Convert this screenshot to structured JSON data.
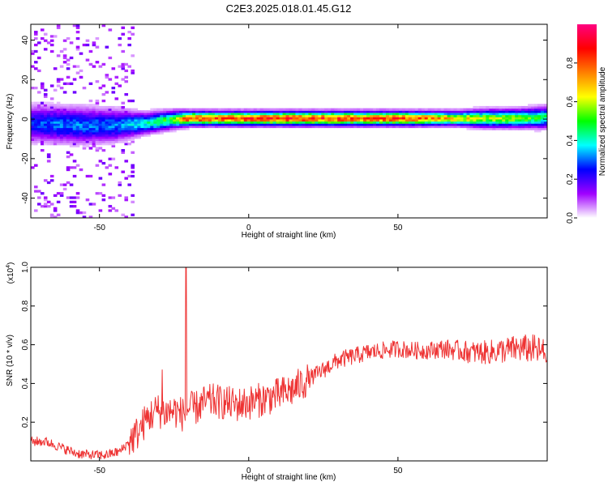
{
  "title": "C2E3.2025.018.01.45.G12",
  "chart_data": [
    {
      "type": "heatmap",
      "xlabel": "Height of straight line (km)",
      "ylabel": "Frequency (Hz)",
      "xlim": [
        -73,
        100
      ],
      "ylim": [
        -50,
        48
      ],
      "xticks": [
        -50,
        0,
        50
      ],
      "xtick_labels": [
        "-50",
        "0",
        "50"
      ],
      "yticks": [
        -40,
        -20,
        0,
        20,
        40
      ],
      "ytick_labels": [
        "-40",
        "-20",
        "0",
        "20",
        "40"
      ],
      "colorbar": {
        "label": "Normalized spectral amplitude",
        "range": [
          0,
          1
        ],
        "ticks": [
          0,
          0.2,
          0.4,
          0.6,
          0.8
        ],
        "tick_labels": [
          "0.0",
          "0.2",
          "0.4",
          "0.6",
          "0.8"
        ],
        "colormap": [
          "#ffffff",
          "#a000ff",
          "#0000ff",
          "#00ffff",
          "#00ff00",
          "#ffff00",
          "#ff8000",
          "#ff0000",
          "#ff0080"
        ]
      },
      "ridge": {
        "x": [
          -73,
          -65,
          -55,
          -45,
          -35,
          -25,
          -20,
          -10,
          0,
          10,
          20,
          30,
          40,
          50,
          60,
          70,
          80,
          90,
          100
        ],
        "frequency": [
          -2,
          -2.5,
          -3,
          -3,
          -2,
          0,
          0.5,
          0.5,
          0.5,
          0.5,
          0.5,
          0.5,
          0.5,
          0.5,
          0.5,
          0.5,
          0.5,
          0.5,
          1
        ],
        "amplitude": [
          0.3,
          0.35,
          0.35,
          0.35,
          0.45,
          0.6,
          0.95,
          0.9,
          0.95,
          0.95,
          0.95,
          0.95,
          0.9,
          0.95,
          0.85,
          0.75,
          0.65,
          0.65,
          0.5
        ],
        "halfwidth_hz": [
          5,
          5,
          5,
          4.5,
          3,
          2.5,
          2,
          2,
          2,
          2,
          2,
          2,
          2,
          2,
          2,
          2,
          2.5,
          2.5,
          3
        ]
      }
    },
    {
      "type": "line",
      "xlabel": "Height of straight line (km)",
      "ylabel": "SNR (10 * v/v)",
      "scale_note": "(x10",
      "scale_exponent": "4",
      "xlim": [
        -73,
        100
      ],
      "ylim": [
        0,
        1.0
      ],
      "xticks": [
        -50,
        0,
        50
      ],
      "xtick_labels": [
        "-50",
        "0",
        "50"
      ],
      "yticks": [
        0.2,
        0.4,
        0.6,
        0.8,
        1.0
      ],
      "ytick_labels": [
        "0.2",
        "0.4",
        "0.6",
        "0.8",
        "1.0"
      ],
      "color": "#ee3333",
      "x": [
        -73,
        -68,
        -63,
        -58,
        -53,
        -48,
        -43,
        -40,
        -37,
        -34,
        -31,
        -28,
        -25,
        -22,
        -20,
        -18,
        -15,
        -12,
        -8,
        -4,
        0,
        5,
        10,
        15,
        20,
        25,
        30,
        35,
        40,
        45,
        50,
        55,
        60,
        65,
        70,
        75,
        80,
        85,
        90,
        95,
        100
      ],
      "y": [
        0.1,
        0.1,
        0.07,
        0.04,
        0.03,
        0.03,
        0.05,
        0.1,
        0.15,
        0.22,
        0.26,
        0.25,
        0.26,
        0.24,
        0.27,
        0.27,
        0.3,
        0.31,
        0.3,
        0.29,
        0.3,
        0.32,
        0.34,
        0.37,
        0.42,
        0.47,
        0.52,
        0.54,
        0.56,
        0.57,
        0.58,
        0.57,
        0.57,
        0.58,
        0.57,
        0.56,
        0.56,
        0.57,
        0.58,
        0.58,
        0.55
      ],
      "spikes": [
        {
          "x": -21,
          "y": 1.0
        },
        {
          "x": -29,
          "y": 0.47
        }
      ]
    }
  ]
}
